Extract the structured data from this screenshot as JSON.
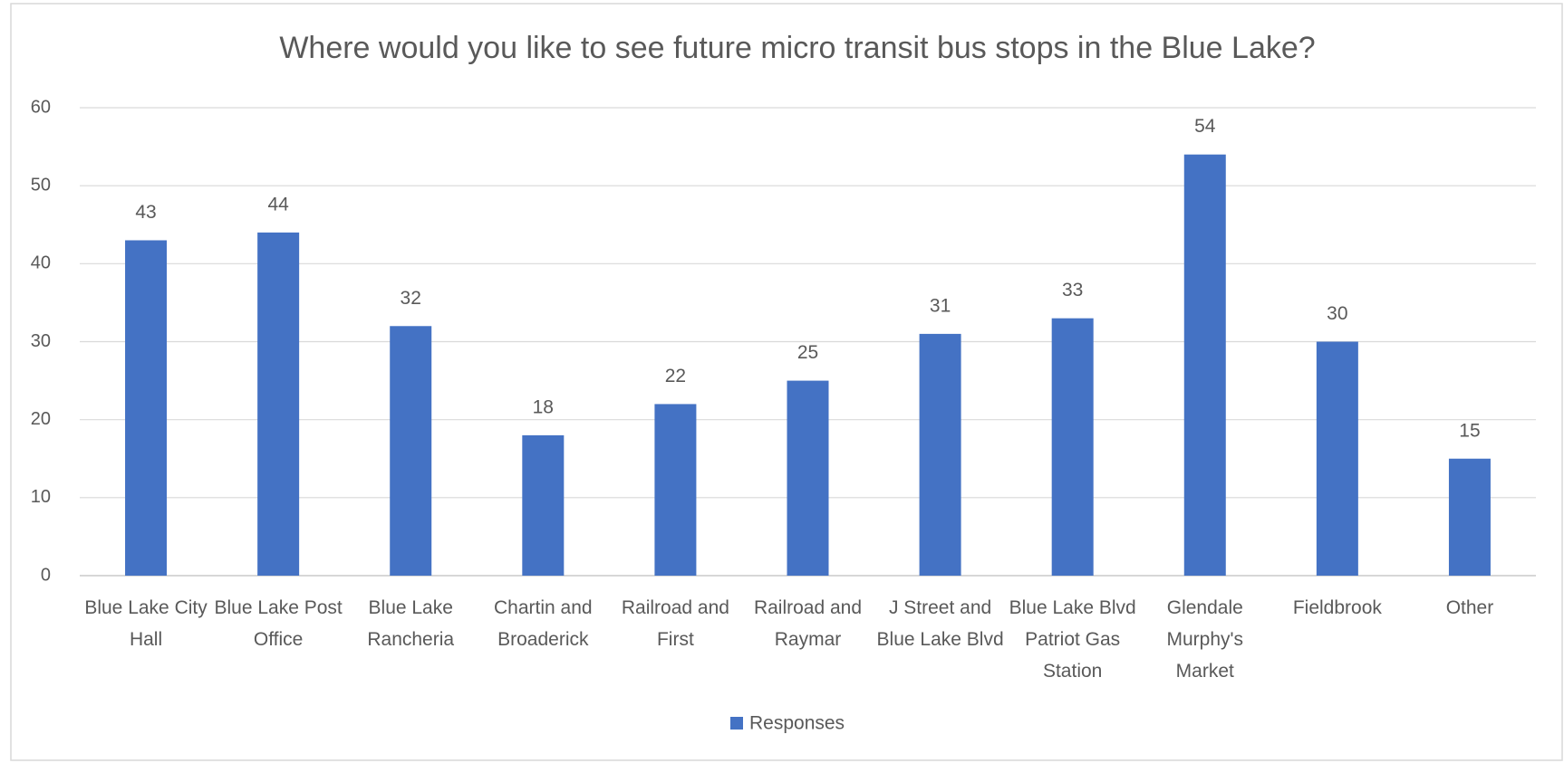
{
  "chart_data": {
    "type": "bar",
    "title": "Where would you like to see future micro transit bus stops in the Blue Lake?",
    "categories": [
      "Blue Lake City Hall",
      "Blue Lake Post Office",
      "Blue Lake Rancheria",
      "Chartin and Broaderick",
      "Railroad and First",
      "Railroad and Raymar",
      "J Street and Blue Lake Blvd",
      "Blue Lake Blvd Patriot Gas Station",
      "Glendale Murphy's Market",
      "Fieldbrook",
      "Other"
    ],
    "series": [
      {
        "name": "Responses",
        "color": "#4472c4",
        "values": [
          43,
          44,
          32,
          18,
          22,
          25,
          31,
          33,
          54,
          30,
          15
        ]
      }
    ],
    "ylim": [
      0,
      60
    ],
    "yticks": [
      0,
      10,
      20,
      30,
      40,
      50,
      60
    ],
    "grid": true,
    "legend": "bottom"
  }
}
